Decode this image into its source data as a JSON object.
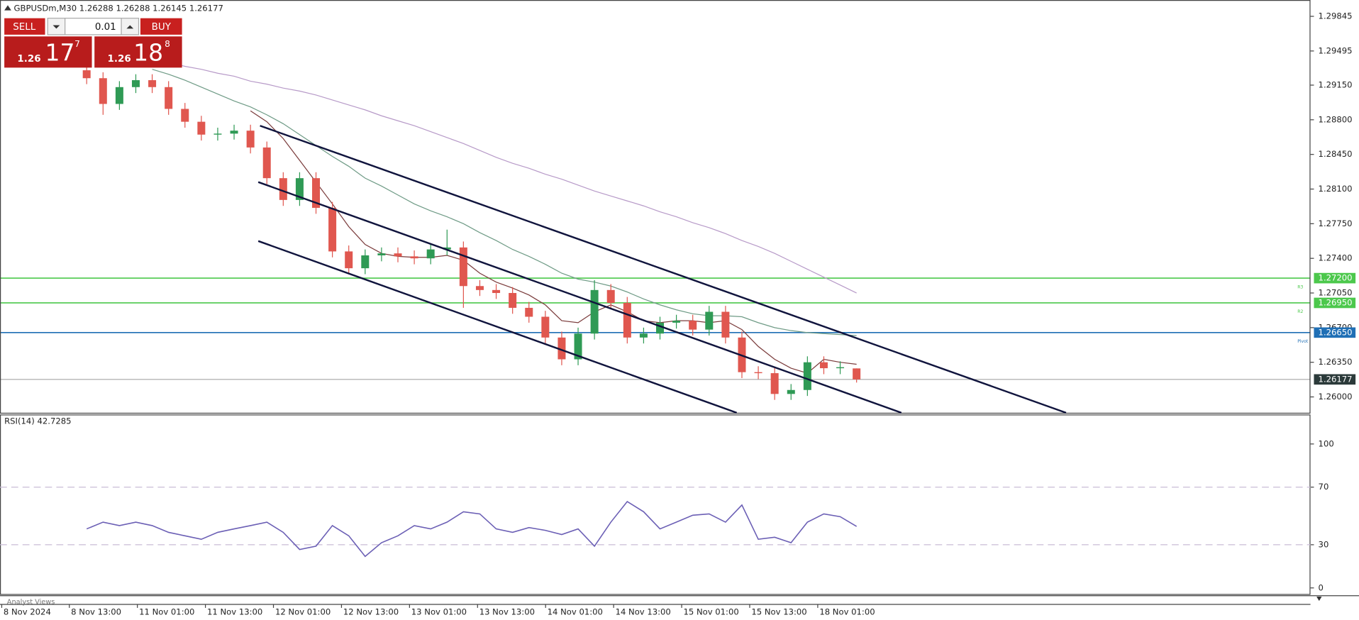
{
  "header": {
    "symbol_line": "GBPUSDm,M30 1.26288 1.26288 1.26145 1.26177"
  },
  "trade_panel": {
    "sell": "SELL",
    "lot": "0.01",
    "buy": "BUY",
    "sell_price": {
      "big": "1.26",
      "pips": "17",
      "point": "7"
    },
    "buy_price": {
      "big": "1.26",
      "pips": "18",
      "point": "8"
    }
  },
  "chart_data": {
    "type": "candlestick",
    "ylim": [
      1.2584,
      1.3001
    ],
    "yticks": [
      {
        "value": 1.29845,
        "label": "1.29845"
      },
      {
        "value": 1.29495,
        "label": "1.29495"
      },
      {
        "value": 1.2915,
        "label": "1.29150"
      },
      {
        "value": 1.288,
        "label": "1.28800"
      },
      {
        "value": 1.2845,
        "label": "1.28450"
      },
      {
        "value": 1.281,
        "label": "1.28100"
      },
      {
        "value": 1.2775,
        "label": "1.27750"
      },
      {
        "value": 1.274,
        "label": "1.27400"
      },
      {
        "value": 1.2705,
        "label": "1.27050"
      },
      {
        "value": 1.267,
        "label": "1.26700"
      },
      {
        "value": 1.2635,
        "label": "1.26350"
      },
      {
        "value": 1.26,
        "label": "1.26000"
      }
    ],
    "up_color": "#2f9a55",
    "down_color": "#e0574f",
    "candles": {
      "open": [
        1.293,
        1.2922,
        1.2896,
        1.2913,
        1.292,
        1.2913,
        1.2891,
        1.2878,
        1.2865,
        1.2866,
        1.2869,
        1.2852,
        1.2821,
        1.2799,
        1.2821,
        1.2791,
        1.2747,
        1.273,
        1.2743,
        1.2745,
        1.2742,
        1.274,
        1.2749,
        1.2751,
        1.2712,
        1.2708,
        1.2705,
        1.269,
        1.2681,
        1.266,
        1.2638,
        1.2664,
        1.2708,
        1.2695,
        1.266,
        1.2664,
        1.2675,
        1.2677,
        1.2668,
        1.2686,
        1.266,
        1.2625,
        1.2624,
        1.2603,
        1.2607,
        1.2635,
        1.2629,
        1.26288
      ],
      "high": [
        1.2936,
        1.2928,
        1.2919,
        1.2926,
        1.2926,
        1.2919,
        1.2897,
        1.2884,
        1.2872,
        1.2875,
        1.2875,
        1.2858,
        1.2827,
        1.2827,
        1.2827,
        1.2797,
        1.2753,
        1.2749,
        1.2751,
        1.2751,
        1.2748,
        1.2755,
        1.2769,
        1.2757,
        1.2718,
        1.2714,
        1.2711,
        1.2696,
        1.2687,
        1.2666,
        1.267,
        1.2718,
        1.2714,
        1.2701,
        1.267,
        1.2681,
        1.2683,
        1.2683,
        1.2692,
        1.2692,
        1.2666,
        1.2631,
        1.263,
        1.2613,
        1.2641,
        1.2641,
        1.2636,
        1.26288
      ],
      "low": [
        1.2916,
        1.2885,
        1.289,
        1.2907,
        1.2907,
        1.2885,
        1.2872,
        1.2859,
        1.2859,
        1.286,
        1.2846,
        1.2815,
        1.2793,
        1.2793,
        1.2785,
        1.2741,
        1.2724,
        1.2724,
        1.2737,
        1.2736,
        1.2734,
        1.2734,
        1.2743,
        1.269,
        1.2702,
        1.2699,
        1.2684,
        1.2675,
        1.2654,
        1.2632,
        1.2632,
        1.2658,
        1.2689,
        1.2654,
        1.2654,
        1.2658,
        1.2669,
        1.2662,
        1.2662,
        1.2654,
        1.2619,
        1.2618,
        1.2597,
        1.2597,
        1.2601,
        1.2623,
        1.2623,
        1.26145
      ],
      "close": [
        1.2922,
        1.2896,
        1.2913,
        1.292,
        1.2913,
        1.2891,
        1.2878,
        1.2865,
        1.2866,
        1.2869,
        1.2852,
        1.2821,
        1.2799,
        1.2821,
        1.2791,
        1.2747,
        1.273,
        1.2743,
        1.2745,
        1.2742,
        1.274,
        1.2749,
        1.2751,
        1.2712,
        1.2708,
        1.2705,
        1.269,
        1.2681,
        1.266,
        1.2638,
        1.2664,
        1.2708,
        1.2695,
        1.266,
        1.2664,
        1.2675,
        1.2677,
        1.2668,
        1.2686,
        1.266,
        1.2625,
        1.2624,
        1.2603,
        1.2607,
        1.2635,
        1.2629,
        1.263,
        1.26177
      ]
    },
    "moving_averages": [
      {
        "color": "#b79ac8",
        "values": [
          null,
          null,
          null,
          null,
          1.2941,
          1.2938,
          1.2934,
          1.2931,
          1.2927,
          1.2924,
          1.2919,
          1.2916,
          1.2912,
          1.2909,
          1.2905,
          1.29,
          1.2895,
          1.289,
          1.2884,
          1.2879,
          1.2874,
          1.2868,
          1.2862,
          1.2856,
          1.2849,
          1.2842,
          1.2836,
          1.2831,
          1.2825,
          1.282,
          1.2814,
          1.2808,
          1.2803,
          1.2798,
          1.2793,
          1.2787,
          1.2782,
          1.2776,
          1.2771,
          1.2765,
          1.2758,
          1.2752,
          1.2745,
          1.2737,
          1.2729,
          1.2721,
          1.2713,
          1.2705
        ]
      },
      {
        "color": "#6f9b86",
        "values": [
          null,
          null,
          null,
          null,
          1.2931,
          1.2926,
          1.292,
          1.2913,
          1.2906,
          1.2899,
          1.2893,
          1.2885,
          1.2876,
          1.2865,
          1.2854,
          1.2843,
          1.2833,
          1.2821,
          1.2813,
          1.2804,
          1.2795,
          1.2788,
          1.2782,
          1.2775,
          1.2766,
          1.2758,
          1.2749,
          1.2742,
          1.2734,
          1.2725,
          1.2719,
          1.2716,
          1.2712,
          1.2706,
          1.2699,
          1.2693,
          1.2688,
          1.2684,
          1.2682,
          1.2682,
          1.2681,
          1.2675,
          1.267,
          1.2667,
          1.2665,
          1.2664,
          1.2663,
          1.2662
        ]
      },
      {
        "color": "#7a3b3b",
        "values": [
          null,
          null,
          null,
          null,
          null,
          null,
          null,
          null,
          null,
          null,
          1.2889,
          1.2878,
          1.2861,
          1.2839,
          1.2817,
          1.2795,
          1.2772,
          1.2754,
          1.2745,
          1.2742,
          1.2741,
          1.2741,
          1.2743,
          1.2738,
          1.2725,
          1.2716,
          1.271,
          1.2703,
          1.2693,
          1.2677,
          1.2675,
          1.2686,
          1.2693,
          1.2686,
          1.2677,
          1.2675,
          1.2677,
          1.2677,
          1.2675,
          1.2677,
          1.2668,
          1.2651,
          1.2638,
          1.2629,
          1.2624,
          1.2638,
          1.2635,
          1.2633
        ]
      }
    ],
    "levels": [
      {
        "name": "R3",
        "value": 1.272,
        "label": "1.27200",
        "color": "#4cc84c"
      },
      {
        "name": "R2",
        "value": 1.2695,
        "label": "1.26950",
        "color": "#4cc84c"
      },
      {
        "name": "Pivot",
        "value": 1.2665,
        "label": "1.26650",
        "color": "#1f6fb5"
      }
    ],
    "current_price": {
      "value": 1.26177,
      "label": "1.26177",
      "color": "#2b3a3a"
    },
    "x_labels": [
      "8 Nov 2024",
      "8 Nov 13:00",
      "11 Nov 01:00",
      "11 Nov 13:00",
      "12 Nov 01:00",
      "12 Nov 13:00",
      "13 Nov 01:00",
      "13 Nov 13:00",
      "14 Nov 01:00",
      "14 Nov 13:00",
      "15 Nov 01:00",
      "15 Nov 13:00",
      "18 Nov 01:00"
    ],
    "rsi": {
      "title": "RSI(14) 42.7285",
      "color": "#6b5fb5",
      "ylim": [
        0,
        100
      ],
      "yticks": [
        100,
        70,
        30,
        0
      ],
      "levels": [
        70,
        30
      ],
      "values": [
        41.0,
        45.7,
        43.3,
        45.7,
        43.3,
        38.6,
        36.2,
        33.8,
        38.6,
        41.0,
        43.3,
        45.7,
        38.6,
        26.7,
        29.0,
        43.3,
        36.2,
        21.9,
        31.4,
        36.2,
        43.3,
        41.0,
        45.7,
        52.9,
        51.4,
        41.0,
        38.6,
        41.9,
        40.0,
        37.1,
        41.0,
        29.0,
        45.7,
        60.0,
        52.9,
        41.0,
        45.7,
        50.5,
        51.4,
        45.7,
        57.6,
        33.8,
        35.2,
        31.4,
        45.7,
        51.4,
        49.5,
        42.73
      ]
    }
  },
  "footer": {
    "tab": "Analyst Views"
  }
}
